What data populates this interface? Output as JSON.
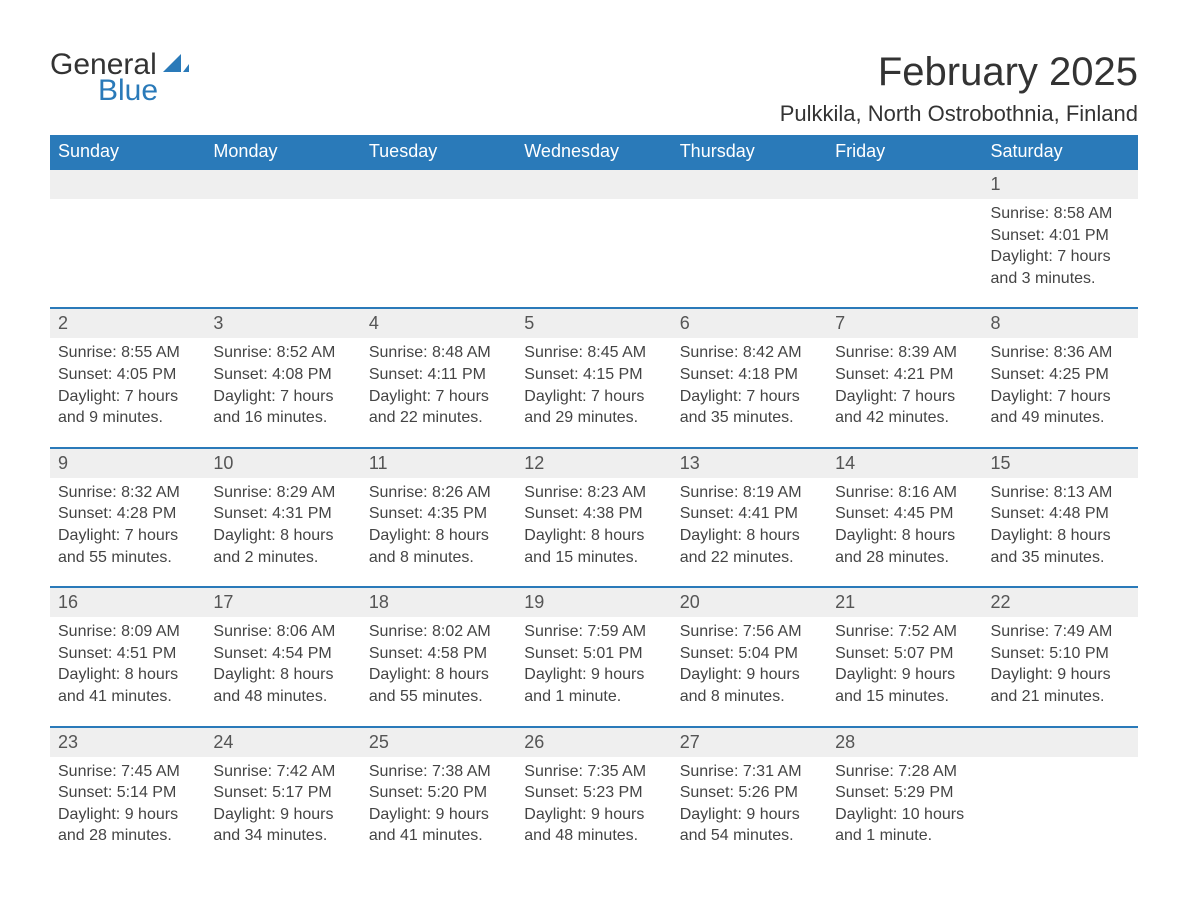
{
  "logo": {
    "text1": "General",
    "text2": "Blue"
  },
  "title": "February 2025",
  "location": "Pulkkila, North Ostrobothnia, Finland",
  "colors": {
    "header_bg": "#2a7ab9",
    "header_text": "#ffffff",
    "daynum_bg": "#efefef",
    "row_border": "#2a7ab9",
    "body_text": "#444444",
    "title_text": "#333333"
  },
  "weekdays": [
    "Sunday",
    "Monday",
    "Tuesday",
    "Wednesday",
    "Thursday",
    "Friday",
    "Saturday"
  ],
  "weeks": [
    [
      null,
      null,
      null,
      null,
      null,
      null,
      {
        "n": "1",
        "sunrise": "Sunrise: 8:58 AM",
        "sunset": "Sunset: 4:01 PM",
        "daylight": "Daylight: 7 hours and 3 minutes."
      }
    ],
    [
      {
        "n": "2",
        "sunrise": "Sunrise: 8:55 AM",
        "sunset": "Sunset: 4:05 PM",
        "daylight": "Daylight: 7 hours and 9 minutes."
      },
      {
        "n": "3",
        "sunrise": "Sunrise: 8:52 AM",
        "sunset": "Sunset: 4:08 PM",
        "daylight": "Daylight: 7 hours and 16 minutes."
      },
      {
        "n": "4",
        "sunrise": "Sunrise: 8:48 AM",
        "sunset": "Sunset: 4:11 PM",
        "daylight": "Daylight: 7 hours and 22 minutes."
      },
      {
        "n": "5",
        "sunrise": "Sunrise: 8:45 AM",
        "sunset": "Sunset: 4:15 PM",
        "daylight": "Daylight: 7 hours and 29 minutes."
      },
      {
        "n": "6",
        "sunrise": "Sunrise: 8:42 AM",
        "sunset": "Sunset: 4:18 PM",
        "daylight": "Daylight: 7 hours and 35 minutes."
      },
      {
        "n": "7",
        "sunrise": "Sunrise: 8:39 AM",
        "sunset": "Sunset: 4:21 PM",
        "daylight": "Daylight: 7 hours and 42 minutes."
      },
      {
        "n": "8",
        "sunrise": "Sunrise: 8:36 AM",
        "sunset": "Sunset: 4:25 PM",
        "daylight": "Daylight: 7 hours and 49 minutes."
      }
    ],
    [
      {
        "n": "9",
        "sunrise": "Sunrise: 8:32 AM",
        "sunset": "Sunset: 4:28 PM",
        "daylight": "Daylight: 7 hours and 55 minutes."
      },
      {
        "n": "10",
        "sunrise": "Sunrise: 8:29 AM",
        "sunset": "Sunset: 4:31 PM",
        "daylight": "Daylight: 8 hours and 2 minutes."
      },
      {
        "n": "11",
        "sunrise": "Sunrise: 8:26 AM",
        "sunset": "Sunset: 4:35 PM",
        "daylight": "Daylight: 8 hours and 8 minutes."
      },
      {
        "n": "12",
        "sunrise": "Sunrise: 8:23 AM",
        "sunset": "Sunset: 4:38 PM",
        "daylight": "Daylight: 8 hours and 15 minutes."
      },
      {
        "n": "13",
        "sunrise": "Sunrise: 8:19 AM",
        "sunset": "Sunset: 4:41 PM",
        "daylight": "Daylight: 8 hours and 22 minutes."
      },
      {
        "n": "14",
        "sunrise": "Sunrise: 8:16 AM",
        "sunset": "Sunset: 4:45 PM",
        "daylight": "Daylight: 8 hours and 28 minutes."
      },
      {
        "n": "15",
        "sunrise": "Sunrise: 8:13 AM",
        "sunset": "Sunset: 4:48 PM",
        "daylight": "Daylight: 8 hours and 35 minutes."
      }
    ],
    [
      {
        "n": "16",
        "sunrise": "Sunrise: 8:09 AM",
        "sunset": "Sunset: 4:51 PM",
        "daylight": "Daylight: 8 hours and 41 minutes."
      },
      {
        "n": "17",
        "sunrise": "Sunrise: 8:06 AM",
        "sunset": "Sunset: 4:54 PM",
        "daylight": "Daylight: 8 hours and 48 minutes."
      },
      {
        "n": "18",
        "sunrise": "Sunrise: 8:02 AM",
        "sunset": "Sunset: 4:58 PM",
        "daylight": "Daylight: 8 hours and 55 minutes."
      },
      {
        "n": "19",
        "sunrise": "Sunrise: 7:59 AM",
        "sunset": "Sunset: 5:01 PM",
        "daylight": "Daylight: 9 hours and 1 minute."
      },
      {
        "n": "20",
        "sunrise": "Sunrise: 7:56 AM",
        "sunset": "Sunset: 5:04 PM",
        "daylight": "Daylight: 9 hours and 8 minutes."
      },
      {
        "n": "21",
        "sunrise": "Sunrise: 7:52 AM",
        "sunset": "Sunset: 5:07 PM",
        "daylight": "Daylight: 9 hours and 15 minutes."
      },
      {
        "n": "22",
        "sunrise": "Sunrise: 7:49 AM",
        "sunset": "Sunset: 5:10 PM",
        "daylight": "Daylight: 9 hours and 21 minutes."
      }
    ],
    [
      {
        "n": "23",
        "sunrise": "Sunrise: 7:45 AM",
        "sunset": "Sunset: 5:14 PM",
        "daylight": "Daylight: 9 hours and 28 minutes."
      },
      {
        "n": "24",
        "sunrise": "Sunrise: 7:42 AM",
        "sunset": "Sunset: 5:17 PM",
        "daylight": "Daylight: 9 hours and 34 minutes."
      },
      {
        "n": "25",
        "sunrise": "Sunrise: 7:38 AM",
        "sunset": "Sunset: 5:20 PM",
        "daylight": "Daylight: 9 hours and 41 minutes."
      },
      {
        "n": "26",
        "sunrise": "Sunrise: 7:35 AM",
        "sunset": "Sunset: 5:23 PM",
        "daylight": "Daylight: 9 hours and 48 minutes."
      },
      {
        "n": "27",
        "sunrise": "Sunrise: 7:31 AM",
        "sunset": "Sunset: 5:26 PM",
        "daylight": "Daylight: 9 hours and 54 minutes."
      },
      {
        "n": "28",
        "sunrise": "Sunrise: 7:28 AM",
        "sunset": "Sunset: 5:29 PM",
        "daylight": "Daylight: 10 hours and 1 minute."
      },
      null
    ]
  ]
}
